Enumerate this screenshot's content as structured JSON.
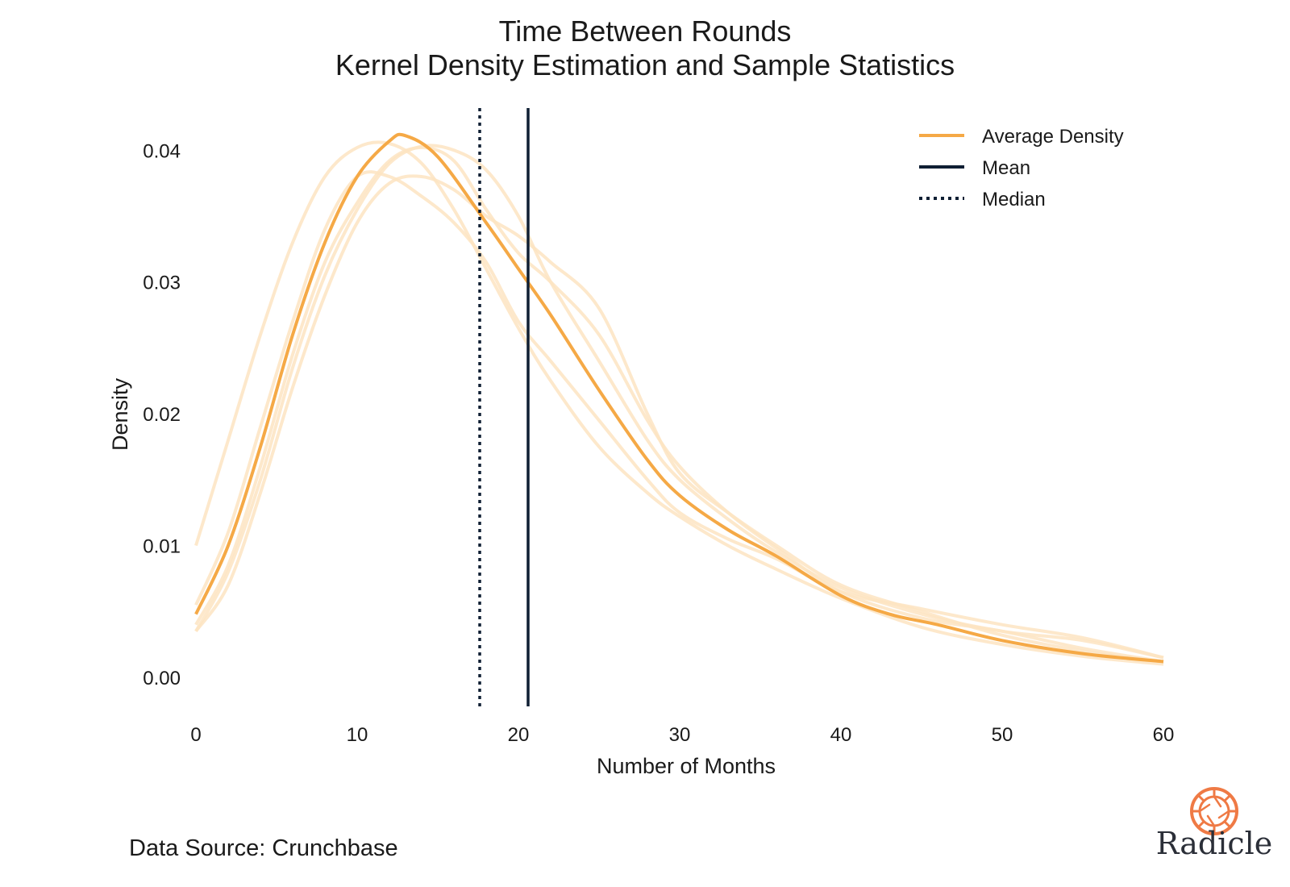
{
  "title_line_1": "Time Between Rounds",
  "title_line_2": "Kernel Density Estimation and Sample Statistics",
  "source_note": "Data Source: Crunchbase",
  "logo_text": "Radicle",
  "colors": {
    "average": "#f5a946",
    "sample": "#fde4c2",
    "mean": "#0f1f33",
    "median": "#0f1f33",
    "logo_accent": "#ef7a45"
  },
  "chart_data": {
    "type": "line",
    "xlabel": "Number of Months",
    "ylabel": "Density",
    "xlim": [
      0,
      60
    ],
    "ylim": [
      -0.0022,
      0.0432
    ],
    "xticks": [
      0,
      10,
      20,
      30,
      40,
      50,
      60
    ],
    "yticks": [
      0.0,
      0.01,
      0.02,
      0.03,
      0.04
    ],
    "ytick_labels": [
      "0.00",
      "0.01",
      "0.02",
      "0.03",
      "0.04"
    ],
    "grid": false,
    "legend_position": "top-right",
    "legend": [
      "Average Density",
      "Mean",
      "Median"
    ],
    "mean": 20.6,
    "median": 17.6,
    "average_density": {
      "x": [
        0,
        2,
        4,
        6,
        8,
        10,
        12,
        13,
        15,
        18,
        20,
        22,
        25,
        28,
        30,
        33,
        36,
        40,
        43,
        46,
        50,
        55,
        60
      ],
      "y": [
        0.0048,
        0.01,
        0.0175,
        0.026,
        0.033,
        0.038,
        0.0407,
        0.0411,
        0.0395,
        0.0345,
        0.031,
        0.0275,
        0.0218,
        0.0165,
        0.0138,
        0.0112,
        0.0092,
        0.0062,
        0.0048,
        0.004,
        0.0028,
        0.0018,
        0.0012
      ]
    },
    "samples": [
      {
        "x": [
          0,
          2,
          4,
          6,
          8,
          10,
          12,
          14,
          16,
          18,
          20,
          22,
          25,
          28,
          30,
          33,
          36,
          40,
          45,
          50,
          55,
          60
        ],
        "y": [
          0.01,
          0.018,
          0.026,
          0.033,
          0.038,
          0.0402,
          0.0405,
          0.039,
          0.0355,
          0.031,
          0.0265,
          0.0225,
          0.0175,
          0.014,
          0.0122,
          0.01,
          0.0082,
          0.006,
          0.0038,
          0.0025,
          0.0016,
          0.001
        ]
      },
      {
        "x": [
          0,
          2,
          4,
          6,
          8,
          10,
          12,
          14,
          16,
          18,
          20,
          22,
          25,
          28,
          30,
          33,
          36,
          40,
          45,
          50,
          55,
          60
        ],
        "y": [
          0.004,
          0.0085,
          0.016,
          0.0245,
          0.0315,
          0.036,
          0.0392,
          0.0402,
          0.0392,
          0.0355,
          0.0322,
          0.03,
          0.026,
          0.0195,
          0.016,
          0.0125,
          0.0098,
          0.0065,
          0.0045,
          0.0035,
          0.0022,
          0.0012
        ]
      },
      {
        "x": [
          0,
          2,
          4,
          6,
          8,
          10,
          12,
          14,
          16,
          18,
          20,
          22,
          25,
          28,
          30,
          33,
          36,
          40,
          45,
          50,
          55,
          60
        ],
        "y": [
          0.0035,
          0.007,
          0.014,
          0.022,
          0.029,
          0.0345,
          0.0375,
          0.038,
          0.037,
          0.035,
          0.0335,
          0.0315,
          0.028,
          0.02,
          0.0155,
          0.0125,
          0.01,
          0.007,
          0.005,
          0.0032,
          0.002,
          0.0012
        ]
      },
      {
        "x": [
          0,
          2,
          4,
          6,
          8,
          10,
          12,
          14,
          16,
          18,
          20,
          22,
          25,
          28,
          30,
          33,
          36,
          40,
          45,
          50,
          55,
          60
        ],
        "y": [
          0.0035,
          0.008,
          0.015,
          0.0235,
          0.0305,
          0.0355,
          0.039,
          0.0403,
          0.04,
          0.0385,
          0.035,
          0.03,
          0.024,
          0.018,
          0.015,
          0.012,
          0.0095,
          0.0068,
          0.0048,
          0.0035,
          0.0028,
          0.0015
        ]
      },
      {
        "x": [
          0,
          2,
          4,
          6,
          8,
          10,
          12,
          14,
          16,
          18,
          20,
          22,
          25,
          28,
          30,
          33,
          36,
          40,
          45,
          50,
          55,
          60
        ],
        "y": [
          0.0055,
          0.011,
          0.019,
          0.027,
          0.034,
          0.038,
          0.038,
          0.0365,
          0.0345,
          0.0315,
          0.027,
          0.024,
          0.0195,
          0.015,
          0.0125,
          0.0105,
          0.009,
          0.0065,
          0.0052,
          0.004,
          0.003,
          0.0015
        ]
      }
    ]
  }
}
